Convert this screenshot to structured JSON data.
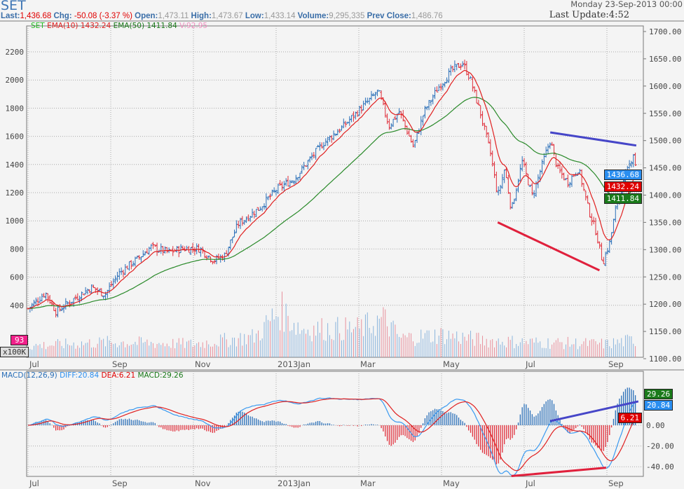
{
  "header": {
    "symbol": "SET",
    "last_label": "Last:",
    "last": "1,436.68",
    "chg_label": "Chg:",
    "chg": "-50.08 (-3.37 %)",
    "open_label": "Open:",
    "open": "1,473.11",
    "high_label": "High:",
    "high": "1,473.67",
    "low_label": "Low:",
    "low": "1,433.14",
    "volume_label": "Volume:",
    "volume": "9,295,335",
    "prev_label": "Prev Close:",
    "prev": "1,486.76",
    "date": "Monday 23-Sep-2013 00:00",
    "last_update": "Last Update:4:52"
  },
  "legend": {
    "sym": "SET",
    "ema10": "EMA(10) 1432.24",
    "ema50": "EMA(50) 1411.84",
    "vol": "V:92.95"
  },
  "macd_legend": {
    "name": "MACD(12,26,9)",
    "diff": "DIFF:20.84",
    "dea": "DEA:6.21",
    "macd": "MACD:29.26"
  },
  "badges": {
    "last": "1436.68",
    "ema10": "1432.24",
    "ema50": "1411.84",
    "vol": "93",
    "vol_unit": "x100K",
    "macd": "29.26",
    "diff": "20.84",
    "dea": "6.21"
  },
  "colors": {
    "up": "#2a6fb8",
    "down": "#e0303c",
    "ema10": "#e02020",
    "ema50": "#2a8a2a",
    "trend_blue": "#4646c8",
    "trend_red": "#e0203c"
  },
  "chart_data": {
    "type": "ohlc",
    "title": "SET",
    "x_unit": "months since Jul 2012",
    "month_ticks": [
      {
        "t": 0,
        "label": "Jul"
      },
      {
        "t": 2,
        "label": "Sep"
      },
      {
        "t": 4,
        "label": "Nov"
      },
      {
        "t": 6,
        "label": "2013Jan"
      },
      {
        "t": 8,
        "label": "Mar"
      },
      {
        "t": 10,
        "label": "May"
      },
      {
        "t": 12,
        "label": "Jul"
      },
      {
        "t": 14,
        "label": "Sep"
      }
    ],
    "right_axis": {
      "ylim": [
        1100,
        1700
      ],
      "ticks": [
        "1700.00",
        "1650.00",
        "1600.00",
        "1550.00",
        "1500.00",
        "1450.00",
        "1400.00",
        "1350.00",
        "1300.00",
        "1250.00",
        "1200.00",
        "1150.00",
        "1100.00"
      ]
    },
    "left_axis": {
      "ticks": [
        "2200",
        "2000",
        "1800",
        "1600",
        "1400",
        "1200",
        "1000",
        "800",
        "600",
        "400"
      ]
    },
    "close": [
      [
        0,
        1192
      ],
      [
        0.42,
        1221
      ],
      [
        0.68,
        1186
      ],
      [
        1.02,
        1205
      ],
      [
        1.53,
        1231
      ],
      [
        1.86,
        1218
      ],
      [
        2.2,
        1257
      ],
      [
        2.63,
        1282
      ],
      [
        2.97,
        1305
      ],
      [
        3.39,
        1295
      ],
      [
        3.73,
        1302
      ],
      [
        4.15,
        1302
      ],
      [
        4.49,
        1280
      ],
      [
        4.75,
        1289
      ],
      [
        5.08,
        1347
      ],
      [
        5.59,
        1376
      ],
      [
        6.02,
        1411
      ],
      [
        6.44,
        1430
      ],
      [
        6.78,
        1462
      ],
      [
        7.12,
        1494
      ],
      [
        7.63,
        1527
      ],
      [
        8.05,
        1559
      ],
      [
        8.47,
        1591
      ],
      [
        8.73,
        1527
      ],
      [
        8.98,
        1553
      ],
      [
        9.32,
        1488
      ],
      [
        9.58,
        1553
      ],
      [
        9.92,
        1597
      ],
      [
        10.25,
        1629
      ],
      [
        10.51,
        1642
      ],
      [
        10.68,
        1616
      ],
      [
        10.93,
        1553
      ],
      [
        11.19,
        1475
      ],
      [
        11.36,
        1398
      ],
      [
        11.53,
        1449
      ],
      [
        11.69,
        1372
      ],
      [
        11.95,
        1462
      ],
      [
        12.2,
        1398
      ],
      [
        12.46,
        1462
      ],
      [
        12.63,
        1501
      ],
      [
        12.8,
        1449
      ],
      [
        13.05,
        1423
      ],
      [
        13.31,
        1449
      ],
      [
        13.56,
        1372
      ],
      [
        13.73,
        1334
      ],
      [
        13.9,
        1276
      ],
      [
        14.07,
        1314
      ],
      [
        14.24,
        1385
      ],
      [
        14.49,
        1443
      ],
      [
        14.66,
        1481
      ],
      [
        14.71,
        1437
      ]
    ],
    "volume": [
      [
        0,
        60
      ],
      [
        2,
        80
      ],
      [
        4,
        70
      ],
      [
        5.5,
        110
      ],
      [
        6.1,
        250
      ],
      [
        6.6,
        150
      ],
      [
        8,
        150
      ],
      [
        8.6,
        200
      ],
      [
        9,
        100
      ],
      [
        10,
        120
      ],
      [
        11,
        90
      ],
      [
        12,
        80
      ],
      [
        14,
        70
      ],
      [
        14.71,
        93
      ]
    ],
    "macd_axis": {
      "ticks": [
        "0.00",
        "-20.00",
        "-40.00"
      ]
    },
    "trendlines": [
      {
        "panel": "price",
        "color": "blue",
        "from": [
          12.63,
          1515
        ],
        "to": [
          14.71,
          1491
        ]
      },
      {
        "panel": "price",
        "color": "red",
        "from": [
          11.36,
          1350
        ],
        "to": [
          13.82,
          1262
        ]
      },
      {
        "panel": "macd",
        "color": "blue",
        "from": [
          12.63,
          4
        ],
        "to": [
          14.76,
          23
        ]
      },
      {
        "panel": "macd",
        "color": "red",
        "from": [
          11.69,
          -49
        ],
        "to": [
          13.98,
          -41
        ]
      }
    ]
  }
}
